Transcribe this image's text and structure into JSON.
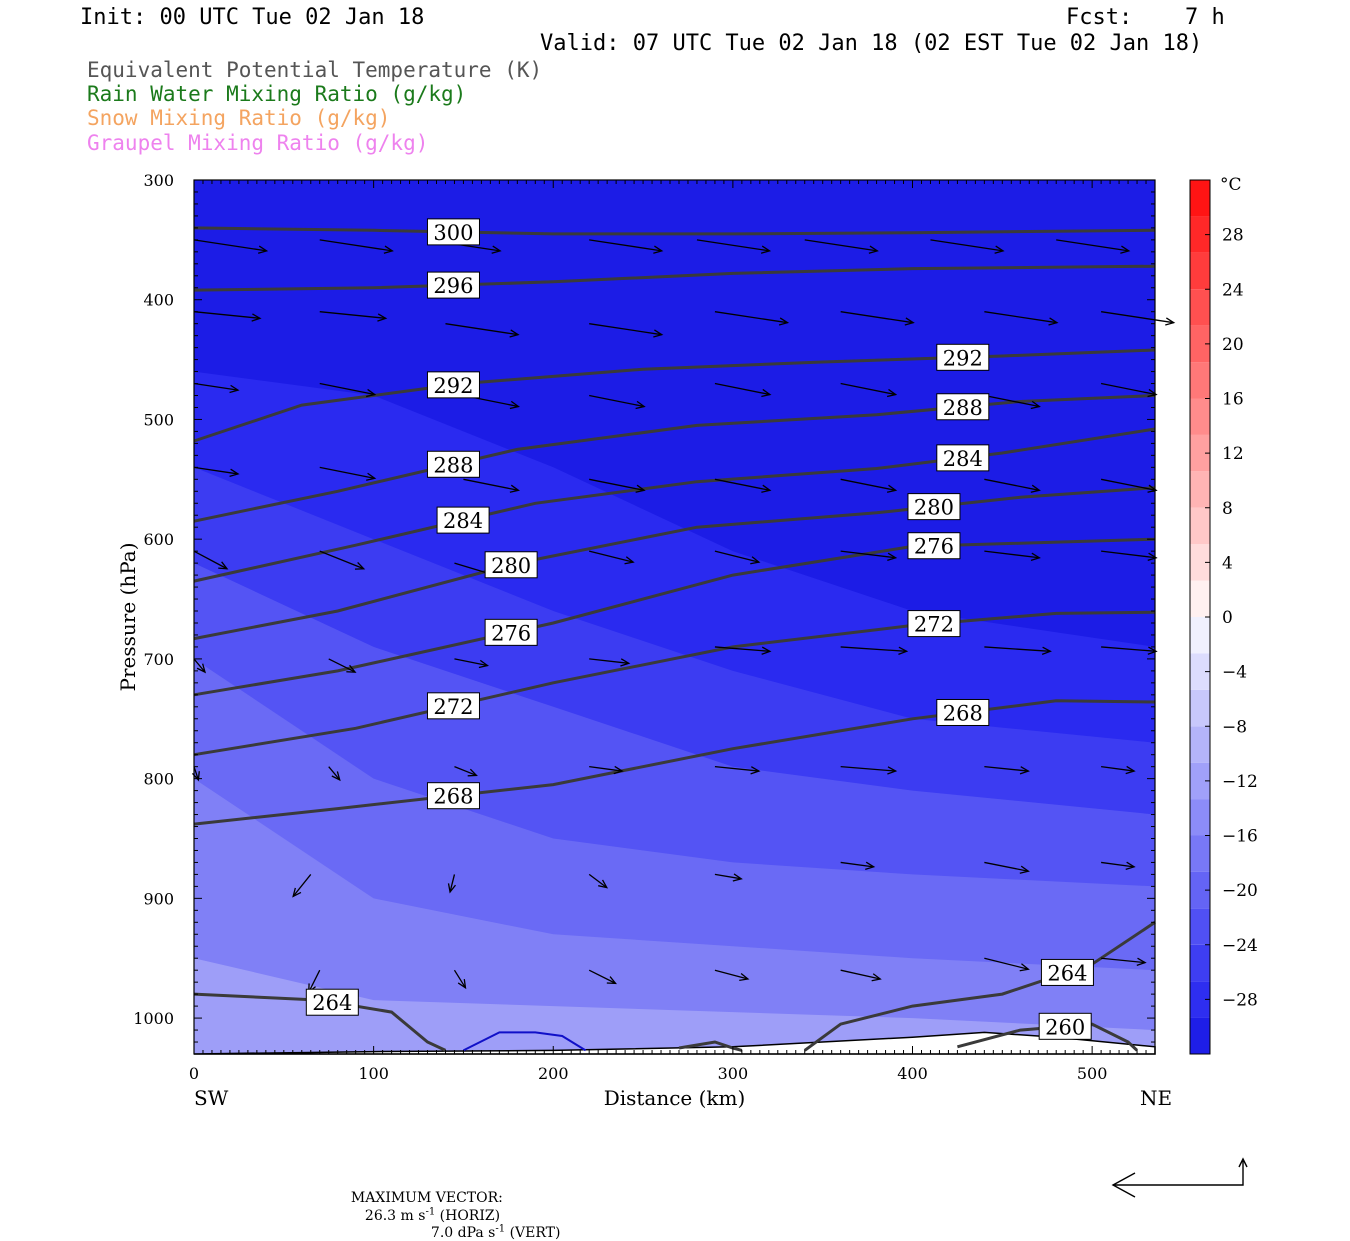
{
  "header": {
    "init": "Init: 00 UTC Tue 02 Jan 18",
    "fcst_label": "Fcst:",
    "fcst_value": "7 h",
    "valid": "Valid: 07 UTC Tue 02 Jan 18 (02 EST Tue 02 Jan 18)"
  },
  "legend": [
    {
      "label": "Equivalent Potential Temperature (K)",
      "color": "#555555"
    },
    {
      "label": "Rain Water Mixing Ratio (g/kg)",
      "color": "#1b7a1b"
    },
    {
      "label": "Snow Mixing Ratio (g/kg)",
      "color": "#f4a460"
    },
    {
      "label": "Graupel Mixing Ratio (g/kg)",
      "color": "#ee82ee"
    }
  ],
  "footer": {
    "max_vector_label": "MAXIMUM VECTOR:",
    "horiz_value": "26.3 m s",
    "horiz_exp": "-1",
    "horiz_suffix": "(HORIZ)",
    "vert_value": "7.0 dPa s",
    "vert_exp": "-1",
    "vert_suffix": "(VERT)"
  },
  "chart_data": {
    "type": "cross-section",
    "xlabel": "Distance (km)",
    "ylabel": "Pressure (hPa)",
    "x_left_label": "SW",
    "x_right_label": "NE",
    "xlim": [
      0,
      535
    ],
    "ylim": [
      1030,
      300
    ],
    "x_ticks": [
      0,
      100,
      200,
      300,
      400,
      500
    ],
    "y_ticks": [
      300,
      400,
      500,
      600,
      700,
      800,
      900,
      1000
    ],
    "colorbar": {
      "unit": "°C",
      "range": [
        -32,
        32
      ],
      "tick_labels": [
        "28",
        "24",
        "20",
        "16",
        "12",
        "8",
        "4",
        "0",
        "−4",
        "−8",
        "−12",
        "−16",
        "−20",
        "−24",
        "−28"
      ],
      "tick_values": [
        28,
        24,
        20,
        16,
        12,
        8,
        4,
        0,
        -4,
        -8,
        -12,
        -16,
        -20,
        -24,
        -28
      ],
      "colors": [
        "#1e1ee8",
        "#2e2ef0",
        "#3e3ef2",
        "#5050f4",
        "#6464f5",
        "#7878f6",
        "#8c8cf8",
        "#a0a0f9",
        "#b4b4fa",
        "#c8c8fc",
        "#dcdcfd",
        "#f0f0fe",
        "#fff0f0",
        "#ffdcdc",
        "#ffc8c8",
        "#ffb4b4",
        "#ffa0a0",
        "#ff8c8c",
        "#ff7878",
        "#ff6464",
        "#ff5050",
        "#ff3c3c",
        "#ff2828",
        "#ff1414"
      ]
    },
    "temperature_bands": [
      {
        "temp_c": -28,
        "pressure_along_x": [
          [
            0,
            460
          ],
          [
            100,
            480
          ],
          [
            200,
            540
          ],
          [
            300,
            610
          ],
          [
            400,
            660
          ],
          [
            535,
            690
          ]
        ]
      },
      {
        "temp_c": -24,
        "pressure_along_x": [
          [
            0,
            540
          ],
          [
            100,
            600
          ],
          [
            200,
            660
          ],
          [
            300,
            710
          ],
          [
            400,
            750
          ],
          [
            535,
            770
          ]
        ]
      },
      {
        "temp_c": -20,
        "pressure_along_x": [
          [
            0,
            620
          ],
          [
            100,
            690
          ],
          [
            200,
            740
          ],
          [
            300,
            790
          ],
          [
            400,
            810
          ],
          [
            535,
            830
          ]
        ]
      },
      {
        "temp_c": -16,
        "pressure_along_x": [
          [
            0,
            700
          ],
          [
            100,
            800
          ],
          [
            200,
            850
          ],
          [
            300,
            870
          ],
          [
            400,
            880
          ],
          [
            535,
            890
          ]
        ]
      },
      {
        "temp_c": -12,
        "pressure_along_x": [
          [
            0,
            800
          ],
          [
            100,
            900
          ],
          [
            200,
            930
          ],
          [
            300,
            940
          ],
          [
            400,
            950
          ],
          [
            535,
            960
          ]
        ]
      },
      {
        "temp_c": -8,
        "pressure_along_x": [
          [
            0,
            950
          ],
          [
            100,
            985
          ],
          [
            200,
            990
          ],
          [
            300,
            995
          ],
          [
            400,
            1000
          ],
          [
            535,
            1010
          ]
        ]
      }
    ],
    "theta_e_contours": [
      {
        "label": "300",
        "points": [
          [
            0,
            340
          ],
          [
            100,
            342
          ],
          [
            200,
            345
          ],
          [
            300,
            345
          ],
          [
            400,
            344
          ],
          [
            535,
            342
          ]
        ]
      },
      {
        "label": "296",
        "points": [
          [
            0,
            392
          ],
          [
            100,
            390
          ],
          [
            200,
            385
          ],
          [
            300,
            378
          ],
          [
            400,
            374
          ],
          [
            535,
            372
          ]
        ]
      },
      {
        "label": "292",
        "points": [
          [
            0,
            518
          ],
          [
            60,
            488
          ],
          [
            150,
            470
          ],
          [
            250,
            458
          ],
          [
            350,
            452
          ],
          [
            450,
            447
          ],
          [
            535,
            442
          ]
        ]
      },
      {
        "label": "288",
        "points": [
          [
            0,
            585
          ],
          [
            80,
            560
          ],
          [
            180,
            525
          ],
          [
            280,
            505
          ],
          [
            380,
            496
          ],
          [
            460,
            485
          ],
          [
            535,
            480
          ]
        ]
      },
      {
        "label": "284",
        "points": [
          [
            0,
            635
          ],
          [
            90,
            605
          ],
          [
            190,
            570
          ],
          [
            280,
            552
          ],
          [
            380,
            541
          ],
          [
            450,
            528
          ],
          [
            535,
            508
          ]
        ]
      },
      {
        "label": "280",
        "points": [
          [
            0,
            683
          ],
          [
            80,
            660
          ],
          [
            180,
            620
          ],
          [
            280,
            590
          ],
          [
            380,
            578
          ],
          [
            460,
            565
          ],
          [
            535,
            557
          ]
        ]
      },
      {
        "label": "276",
        "points": [
          [
            0,
            730
          ],
          [
            80,
            710
          ],
          [
            200,
            670
          ],
          [
            300,
            630
          ],
          [
            400,
            606
          ],
          [
            535,
            600
          ]
        ]
      },
      {
        "label": "272",
        "points": [
          [
            0,
            780
          ],
          [
            90,
            758
          ],
          [
            200,
            720
          ],
          [
            300,
            690
          ],
          [
            400,
            672
          ],
          [
            480,
            662
          ],
          [
            535,
            661
          ]
        ]
      },
      {
        "label": "268",
        "points": [
          [
            0,
            838
          ],
          [
            80,
            825
          ],
          [
            200,
            805
          ],
          [
            300,
            775
          ],
          [
            400,
            750
          ],
          [
            480,
            735
          ],
          [
            535,
            736
          ]
        ]
      },
      {
        "label": "264",
        "points": [
          [
            0,
            980
          ],
          [
            70,
            985
          ],
          [
            110,
            995
          ],
          [
            130,
            1020
          ],
          [
            140,
            1027
          ]
        ]
      },
      {
        "label": "264",
        "points": [
          [
            340,
            1027
          ],
          [
            360,
            1005
          ],
          [
            400,
            990
          ],
          [
            450,
            980
          ],
          [
            500,
            955
          ],
          [
            535,
            920
          ]
        ]
      },
      {
        "label": "260",
        "points": [
          [
            425,
            1024
          ],
          [
            460,
            1010
          ],
          [
            500,
            1005
          ],
          [
            520,
            1020
          ],
          [
            525,
            1027
          ]
        ]
      },
      {
        "label": "",
        "points": [
          [
            270,
            1025
          ],
          [
            290,
            1020
          ],
          [
            300,
            1025
          ],
          [
            305,
            1027
          ]
        ]
      }
    ],
    "snow_contour": {
      "points": [
        [
          150,
          1027
        ],
        [
          170,
          1012
        ],
        [
          190,
          1012
        ],
        [
          205,
          1015
        ],
        [
          218,
          1027
        ]
      ]
    },
    "terrain_pressure": [
      [
        0,
        1030
      ],
      [
        100,
        1028
      ],
      [
        200,
        1027
      ],
      [
        300,
        1024
      ],
      [
        400,
        1016
      ],
      [
        440,
        1012
      ],
      [
        480,
        1016
      ],
      [
        535,
        1024
      ]
    ],
    "wind_vectors": [
      [
        0,
        350,
        33,
        5
      ],
      [
        70,
        350,
        33,
        5
      ],
      [
        130,
        350,
        33,
        5
      ],
      [
        220,
        350,
        33,
        5
      ],
      [
        280,
        350,
        33,
        5
      ],
      [
        340,
        350,
        33,
        5
      ],
      [
        410,
        350,
        33,
        5
      ],
      [
        480,
        350,
        33,
        5
      ],
      [
        0,
        410,
        30,
        3
      ],
      [
        70,
        410,
        30,
        3
      ],
      [
        140,
        420,
        33,
        5
      ],
      [
        220,
        420,
        33,
        5
      ],
      [
        290,
        410,
        33,
        5
      ],
      [
        360,
        410,
        33,
        5
      ],
      [
        440,
        410,
        33,
        5
      ],
      [
        505,
        410,
        33,
        5
      ],
      [
        0,
        470,
        20,
        3
      ],
      [
        70,
        470,
        25,
        5
      ],
      [
        150,
        480,
        25,
        5
      ],
      [
        220,
        480,
        25,
        5
      ],
      [
        290,
        470,
        25,
        5
      ],
      [
        360,
        470,
        25,
        5
      ],
      [
        440,
        480,
        25,
        5
      ],
      [
        505,
        470,
        25,
        5
      ],
      [
        0,
        540,
        20,
        3
      ],
      [
        70,
        540,
        25,
        5
      ],
      [
        150,
        550,
        25,
        5
      ],
      [
        220,
        550,
        25,
        5
      ],
      [
        290,
        550,
        25,
        5
      ],
      [
        360,
        550,
        25,
        5
      ],
      [
        440,
        550,
        25,
        5
      ],
      [
        505,
        550,
        25,
        5
      ],
      [
        0,
        610,
        15,
        8
      ],
      [
        70,
        610,
        20,
        8
      ],
      [
        145,
        620,
        20,
        6
      ],
      [
        220,
        610,
        20,
        5
      ],
      [
        290,
        610,
        20,
        5
      ],
      [
        360,
        610,
        25,
        3
      ],
      [
        440,
        610,
        25,
        3
      ],
      [
        505,
        610,
        25,
        3
      ],
      [
        0,
        700,
        5,
        6
      ],
      [
        75,
        700,
        12,
        6
      ],
      [
        145,
        700,
        15,
        3
      ],
      [
        220,
        700,
        18,
        2
      ],
      [
        290,
        690,
        25,
        2
      ],
      [
        360,
        690,
        30,
        2
      ],
      [
        440,
        690,
        30,
        2
      ],
      [
        505,
        690,
        25,
        2
      ],
      [
        0,
        790,
        2,
        6
      ],
      [
        75,
        790,
        5,
        6
      ],
      [
        145,
        790,
        10,
        4
      ],
      [
        220,
        790,
        15,
        2
      ],
      [
        290,
        790,
        20,
        2
      ],
      [
        360,
        790,
        25,
        2
      ],
      [
        440,
        790,
        20,
        2
      ],
      [
        505,
        790,
        15,
        2
      ],
      [
        65,
        880,
        -8,
        10
      ],
      [
        145,
        880,
        -2,
        8
      ],
      [
        220,
        880,
        8,
        6
      ],
      [
        290,
        880,
        12,
        2
      ],
      [
        360,
        870,
        15,
        2
      ],
      [
        440,
        870,
        20,
        4
      ],
      [
        505,
        870,
        15,
        2
      ],
      [
        70,
        960,
        -5,
        10
      ],
      [
        145,
        960,
        5,
        8
      ],
      [
        220,
        960,
        12,
        6
      ],
      [
        290,
        960,
        15,
        4
      ],
      [
        360,
        960,
        18,
        4
      ],
      [
        440,
        950,
        20,
        5
      ],
      [
        505,
        950,
        20,
        2
      ]
    ]
  }
}
